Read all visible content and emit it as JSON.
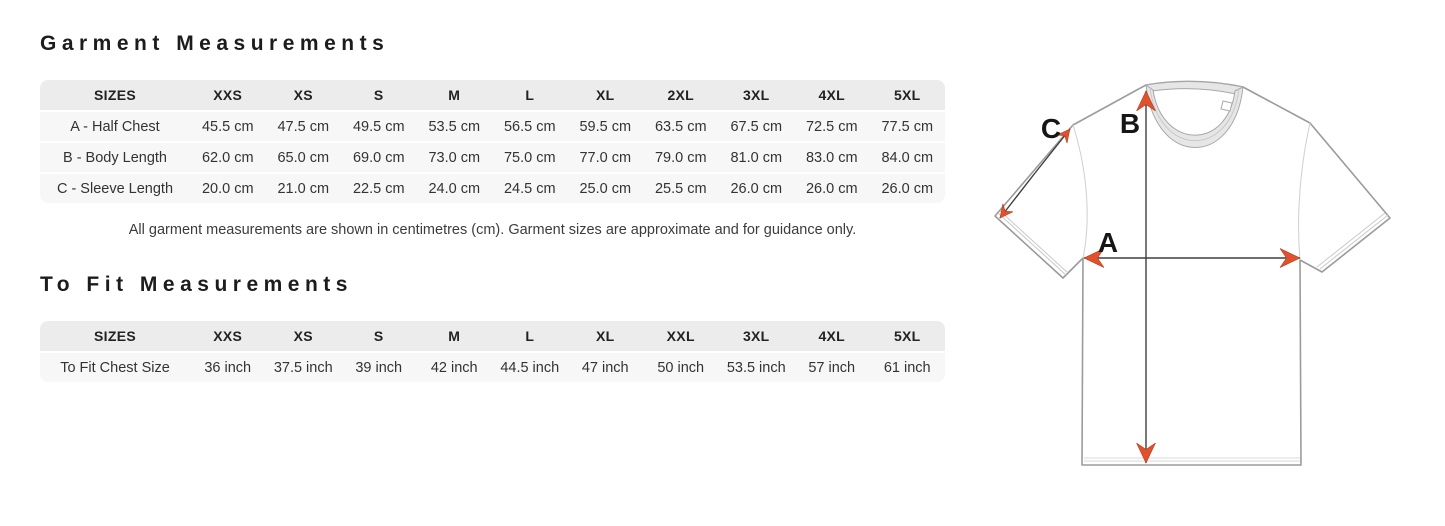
{
  "colors": {
    "arrow": "#E0512D",
    "shirt_outline": "#9B9B9B",
    "table_header_bg": "#ECECEC",
    "table_row_bg": "#F7F7F7",
    "text_dark": "#1C1C1C",
    "text_body": "#3C3C3C"
  },
  "garment_section": {
    "title": "Garment Measurements",
    "table": {
      "headers": [
        "SIZES",
        "XXS",
        "XS",
        "S",
        "M",
        "L",
        "XL",
        "2XL",
        "3XL",
        "4XL",
        "5XL"
      ],
      "rows": [
        {
          "label": "A - Half Chest",
          "values": [
            "45.5 cm",
            "47.5 cm",
            "49.5 cm",
            "53.5 cm",
            "56.5 cm",
            "59.5 cm",
            "63.5 cm",
            "67.5 cm",
            "72.5 cm",
            "77.5 cm"
          ]
        },
        {
          "label": "B - Body Length",
          "values": [
            "62.0 cm",
            "65.0 cm",
            "69.0 cm",
            "73.0 cm",
            "75.0 cm",
            "77.0 cm",
            "79.0 cm",
            "81.0 cm",
            "83.0 cm",
            "84.0 cm"
          ]
        },
        {
          "label": "C - Sleeve Length",
          "values": [
            "20.0 cm",
            "21.0 cm",
            "22.5 cm",
            "24.0 cm",
            "24.5 cm",
            "25.0 cm",
            "25.5 cm",
            "26.0 cm",
            "26.0 cm",
            "26.0 cm"
          ]
        }
      ]
    },
    "note": "All garment measurements are shown in centimetres (cm). Garment sizes are approximate and for guidance only."
  },
  "to_fit_section": {
    "title": "To Fit Measurements",
    "table": {
      "headers": [
        "SIZES",
        "XXS",
        "XS",
        "S",
        "M",
        "L",
        "XL",
        "XXL",
        "3XL",
        "4XL",
        "5XL"
      ],
      "rows": [
        {
          "label": "To Fit Chest Size",
          "values": [
            "36 inch",
            "37.5 inch",
            "39 inch",
            "42 inch",
            "44.5 inch",
            "47 inch",
            "50 inch",
            "53.5 inch",
            "57 inch",
            "61 inch"
          ]
        }
      ]
    }
  },
  "diagram": {
    "labels": {
      "half_chest": "A",
      "body_length": "B",
      "sleeve_length": "C"
    }
  }
}
